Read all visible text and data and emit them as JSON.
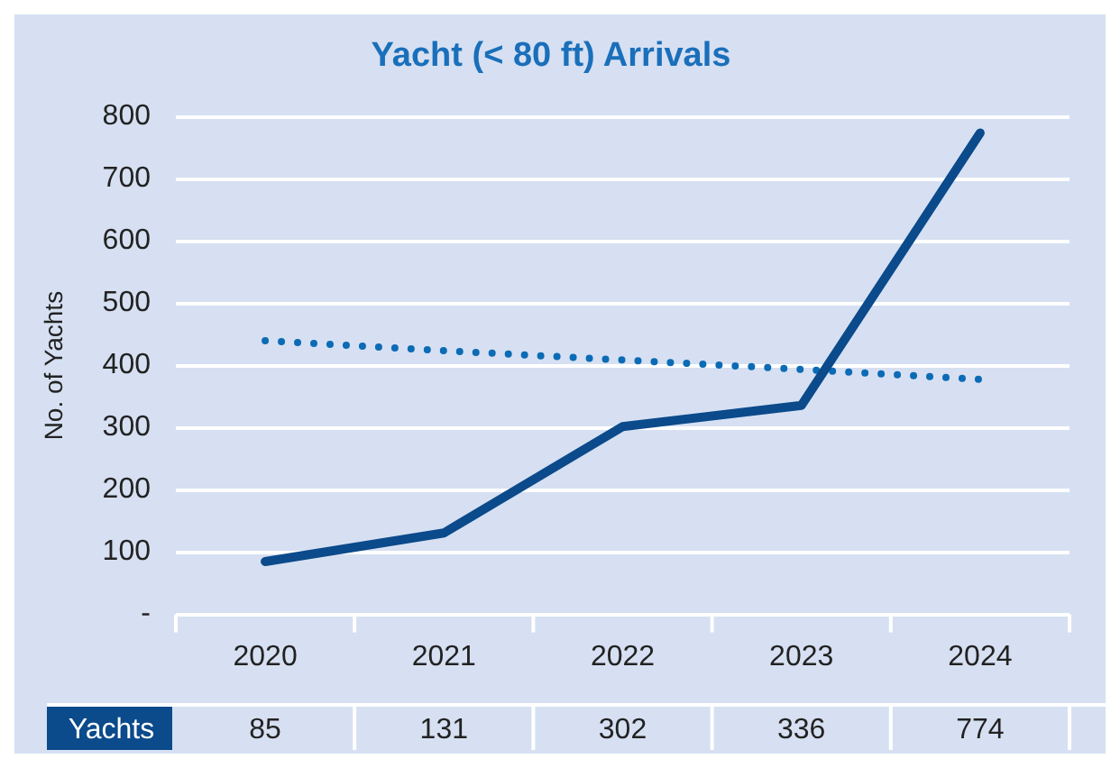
{
  "chart_data": {
    "type": "line",
    "title": "Yacht (< 80 ft) Arrivals",
    "ylabel": "No. of Yachts",
    "categories": [
      "2020",
      "2021",
      "2022",
      "2023",
      "2024"
    ],
    "series": [
      {
        "name": "Yachts",
        "color": "#0b4a8b",
        "values": [
          85,
          131,
          302,
          336,
          774
        ],
        "value_labels": [
          "85",
          "131",
          "302",
          "336",
          "774"
        ],
        "line_style": "solid"
      },
      {
        "type": "line",
        "color": "#0c6bb5",
        "values": [
          440,
          424,
          409,
          394,
          378
        ],
        "line_style": "dotted"
      }
    ],
    "ylim": [
      0,
      800
    ],
    "yticks": [
      {
        "value": 0,
        "label": "-"
      },
      100,
      200,
      300,
      400,
      500,
      600,
      700,
      800
    ],
    "grid": "y",
    "legend": false,
    "marker": "none"
  }
}
